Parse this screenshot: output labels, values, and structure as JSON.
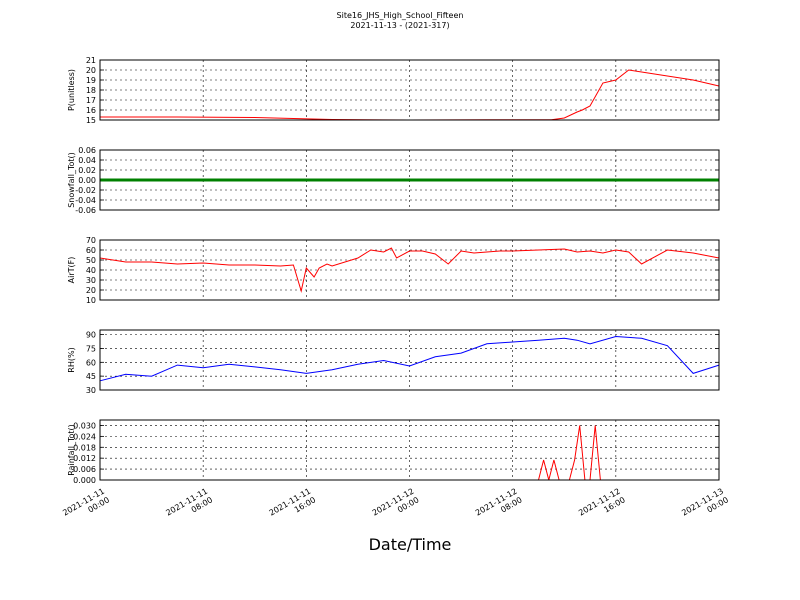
{
  "figure": {
    "title_line1": "Site16_JHS_High_School_Fifteen",
    "title_line2": "2021-11-13 - (2021-317)",
    "xlabel": "Date/Time"
  },
  "chart_data": [
    {
      "type": "line",
      "ylabel": "P(unitless)",
      "color": "#ff0000",
      "ylim": [
        15,
        21
      ],
      "yticks": [
        "15",
        "16",
        "17",
        "18",
        "19",
        "20",
        "21"
      ],
      "x": [
        0,
        3,
        6,
        9,
        12,
        15,
        17.5,
        18,
        18.5,
        18.7,
        19,
        19.5,
        20,
        20.5,
        21,
        21.5,
        22,
        22.5,
        23,
        23.5,
        24
      ],
      "values": [
        15.3,
        15.3,
        15.25,
        15.05,
        15.0,
        15.02,
        15.03,
        15.2,
        15.8,
        16.0,
        16.4,
        18.7,
        19.0,
        20.0,
        19.8,
        19.6,
        19.4,
        19.2,
        19.0,
        18.7,
        18.4
      ]
    },
    {
      "type": "line",
      "ylabel": "Snowfall_Tot()",
      "color": "#008000",
      "ylim": [
        -0.06,
        0.06
      ],
      "yticks": [
        "-0.06",
        "-0.04",
        "-0.02",
        "0.00",
        "0.02",
        "0.04",
        "0.06"
      ],
      "x": [
        0,
        24
      ],
      "values": [
        0,
        0
      ]
    },
    {
      "type": "line",
      "ylabel": "AirT(F)",
      "color": "#ff0000",
      "ylim": [
        10,
        70
      ],
      "yticks": [
        "10",
        "20",
        "30",
        "40",
        "50",
        "60",
        "70"
      ],
      "x": [
        0,
        1,
        2,
        3,
        4,
        5,
        6,
        7,
        7.5,
        7.8,
        8,
        8.3,
        8.5,
        8.8,
        9,
        10,
        10.5,
        11,
        11.3,
        11.5,
        12,
        12.5,
        13,
        13.5,
        14,
        14.5,
        15,
        15.5,
        16,
        17,
        18,
        18.5,
        19,
        19.5,
        20,
        20.5,
        21,
        22,
        23,
        24
      ],
      "values": [
        52,
        48,
        48,
        46,
        47,
        45,
        45,
        44,
        45,
        19,
        42,
        33,
        42,
        46,
        44,
        52,
        60,
        58,
        62,
        52,
        59,
        59,
        56,
        46,
        59,
        57,
        58,
        59,
        59,
        60,
        61,
        58,
        59,
        57,
        60,
        58,
        46,
        60,
        57,
        52
      ]
    },
    {
      "type": "line",
      "ylabel": "RH(%)",
      "color": "#0000ff",
      "ylim": [
        30,
        95
      ],
      "yticks": [
        "30",
        "45",
        "60",
        "75",
        "90"
      ],
      "x": [
        0,
        1,
        2,
        3,
        4,
        5,
        6,
        7,
        8,
        9,
        10,
        11,
        12,
        13,
        14,
        15,
        16,
        17,
        18,
        18.5,
        19,
        20,
        21,
        22,
        23,
        24
      ],
      "values": [
        40,
        47,
        45,
        57,
        54,
        58,
        55,
        52,
        48,
        52,
        58,
        62,
        56,
        66,
        70,
        80,
        82,
        84,
        86,
        84,
        80,
        88,
        86,
        78,
        48,
        57
      ]
    },
    {
      "type": "line",
      "ylabel": "Rainfall_Tot()",
      "color": "#ff0000",
      "ylim": [
        0,
        0.033
      ],
      "yticks": [
        "0.000",
        "0.006",
        "0.012",
        "0.018",
        "0.024",
        "0.030"
      ],
      "x": [
        0,
        17.0,
        17.2,
        17.4,
        17.6,
        17.8,
        18.0,
        18.2,
        18.4,
        18.6,
        18.8,
        19.0,
        19.2,
        19.4,
        24
      ],
      "values": [
        0,
        0,
        0.011,
        0,
        0.011,
        0,
        0,
        0,
        0.011,
        0.03,
        0,
        0,
        0.03,
        0,
        0
      ]
    }
  ],
  "xticks": [
    {
      "line1": "2021-11-11",
      "line2": "00:00"
    },
    {
      "line1": "2021-11-11",
      "line2": "08:00"
    },
    {
      "line1": "2021-11-11",
      "line2": "16:00"
    },
    {
      "line1": "2021-11-12",
      "line2": "00:00"
    },
    {
      "line1": "2021-11-12",
      "line2": "08:00"
    },
    {
      "line1": "2021-11-12",
      "line2": "16:00"
    },
    {
      "line1": "2021-11-13",
      "line2": "00:00"
    }
  ]
}
